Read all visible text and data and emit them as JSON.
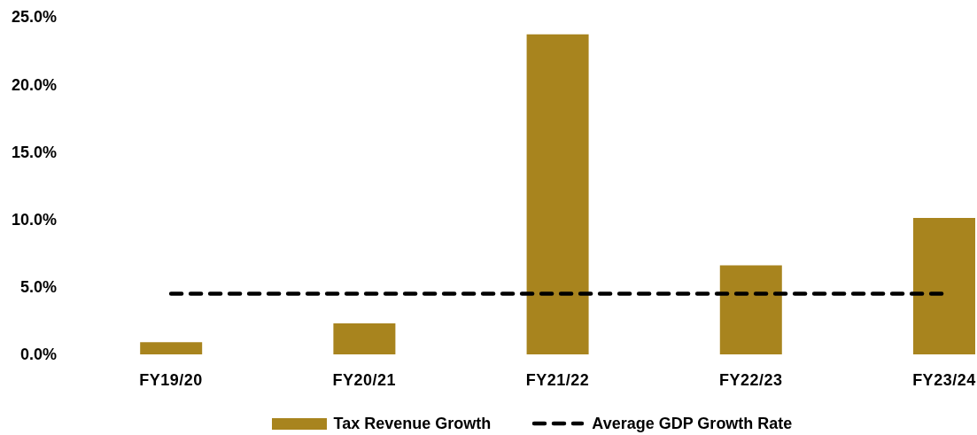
{
  "chart_data": {
    "type": "bar",
    "categories": [
      "FY19/20",
      "FY20/21",
      "FY21/22",
      "FY22/23",
      "FY23/24"
    ],
    "series": [
      {
        "name": "Tax Revenue Growth",
        "color": "#a8841e",
        "values": [
          0.9,
          2.3,
          23.7,
          6.6,
          10.1
        ]
      },
      {
        "name": "Average GDP Growth Rate",
        "type": "line",
        "color": "#000000",
        "line_style": "dashed",
        "values": [
          4.5,
          4.5,
          4.5,
          4.5,
          4.5
        ]
      }
    ],
    "ylim": [
      0,
      25
    ],
    "yticks": [
      {
        "value": 0,
        "label": "0.0%"
      },
      {
        "value": 5,
        "label": "5.0%"
      },
      {
        "value": 10,
        "label": "10.0%"
      },
      {
        "value": 15,
        "label": "15.0%"
      },
      {
        "value": 20,
        "label": "20.0%"
      },
      {
        "value": 25,
        "label": "25.0%"
      }
    ],
    "grid": false,
    "legend": "bottom"
  }
}
